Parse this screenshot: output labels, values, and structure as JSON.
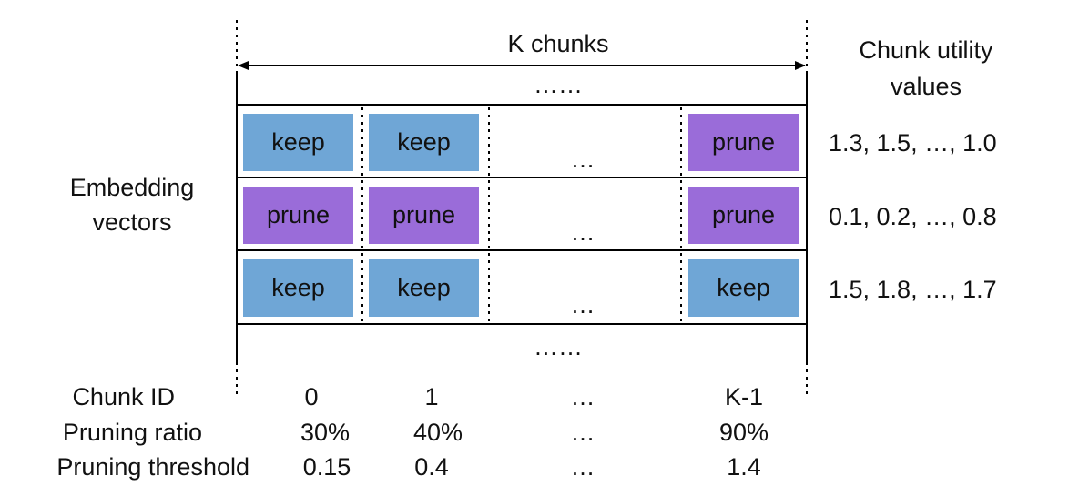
{
  "header": {
    "k_chunks": "K chunks",
    "top_dots": "……",
    "bottom_dots": "……",
    "utility_title_line1": "Chunk utility",
    "utility_title_line2": "values"
  },
  "left_label": {
    "line1": "Embedding",
    "line2": "vectors"
  },
  "rows": [
    {
      "cells": [
        "keep",
        "keep",
        "prune"
      ],
      "ellipsis": "…",
      "utility": "1.3, 1.5, …, 1.0"
    },
    {
      "cells": [
        "prune",
        "prune",
        "prune"
      ],
      "ellipsis": "…",
      "utility": "0.1, 0.2, …, 0.8"
    },
    {
      "cells": [
        "keep",
        "keep",
        "keep"
      ],
      "ellipsis": "…",
      "utility": "1.5, 1.8, …, 1.7"
    }
  ],
  "footer": {
    "chunk_id": {
      "label": "Chunk ID",
      "values": [
        "0",
        "1",
        "…",
        "K-1"
      ]
    },
    "pruning_ratio": {
      "label": "Pruning ratio",
      "values": [
        "30%",
        "40%",
        "…",
        "90%"
      ]
    },
    "pruning_threshold": {
      "label": "Pruning threshold",
      "values": [
        "0.15",
        "0.4",
        "…",
        "1.4"
      ]
    }
  },
  "colors": {
    "keep": "#6fa6d6",
    "prune": "#9a6cd9",
    "line": "#000000"
  }
}
